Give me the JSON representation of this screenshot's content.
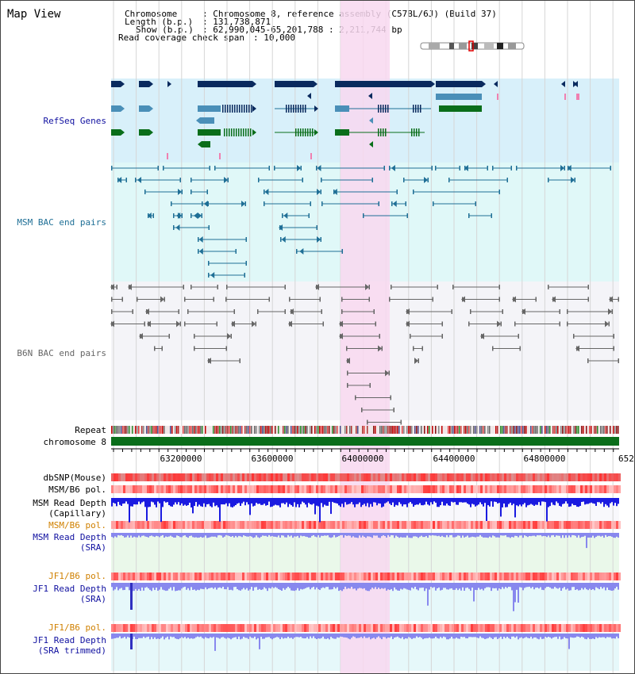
{
  "title": "Map View",
  "info": {
    "chromosome_key": "Chromosome",
    "chromosome_val": ": Chromosome 8, reference assembly (C57BL/6J) (Build 37)",
    "length_key": "Length (b.p.)",
    "length_val": ": 131,738,871",
    "show_key": "Show (b.p.)",
    "show_val": ": 62,990,045-65,201,788 : 2,211,744 bp",
    "coverage_key": "Read coverage check span",
    "coverage_val": ": 10,000"
  },
  "tracks": {
    "refseq": "RefSeq Genes",
    "msm_bac": "MSM BAC end pairs",
    "b6n_bac": "B6N BAC end pairs",
    "repeat": "Repeat",
    "chromosome": "chromosome 8",
    "dbsnp": "dbSNP(Mouse)",
    "msm_b6_pol": "MSM/B6 pol.",
    "msm_depth_cap_1": "MSM Read Depth",
    "msm_depth_cap_2": "(Capillary)",
    "msm_b6_pol_2": "MSM/B6 pol.",
    "msm_depth_sra_1": "MSM Read Depth",
    "msm_depth_sra_2": "(SRA)",
    "jf1_b6_pol": "JF1/B6 pol.",
    "jf1_depth_sra_1": "JF1 Read Depth",
    "jf1_depth_sra_2": "(SRA)",
    "jf1_b6_pol_2": "JF1/B6 pol.",
    "jf1_depth_trim_1": "JF1 Read Depth",
    "jf1_depth_trim_2": "(SRA trimmed)"
  },
  "axis": {
    "ticks": [
      "63200000",
      "63600000",
      "64000000",
      "64400000",
      "64800000",
      "652"
    ]
  },
  "colors": {
    "refseq_bg": "#d8f0fa",
    "msm_bac_bg": "#e0f8f8",
    "b6n_bac_bg": "#f4f4f8",
    "highlight": "#f8d8f0",
    "navy": "#0a2a5e",
    "steel": "#4a8fb8",
    "green": "#0a6e1a",
    "teal": "#1f6f96",
    "gray": "#666666",
    "label_blue": "#1010a0",
    "label_orange": "#d08000",
    "label_black": "#000000",
    "depth_blue": "#1a1ae0",
    "depth_light": "#8888ee",
    "chrom_green": "#0a6e1a"
  }
}
